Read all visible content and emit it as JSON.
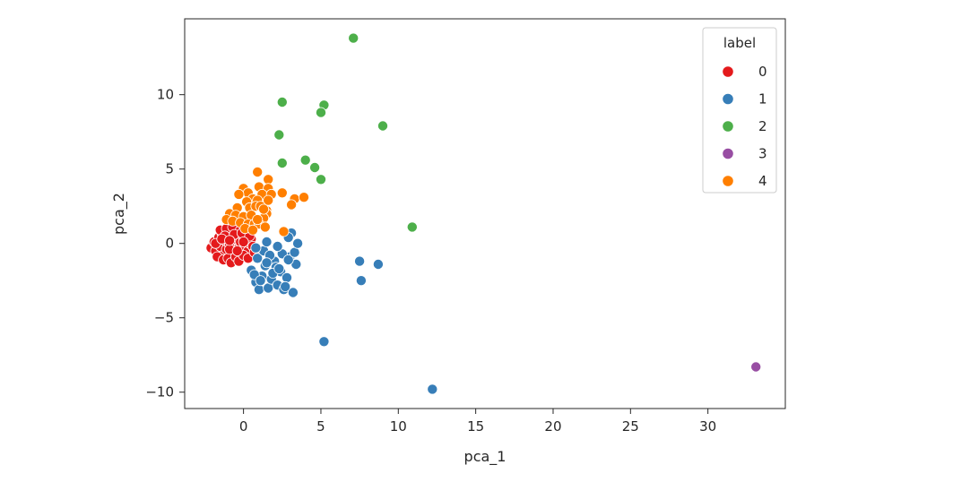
{
  "colors": {
    "0": "#e41a1c",
    "1": "#377eb8",
    "2": "#4daf4a",
    "3": "#984ea3",
    "4": "#ff7f00",
    "frame": "#262626",
    "point_edge": "#ffffff"
  },
  "chart_data": {
    "type": "scatter",
    "title": "",
    "xlabel": "pca_1",
    "ylabel": "pca_2",
    "xlim": [
      -3.8,
      35.0
    ],
    "ylim": [
      -11.1,
      15.1
    ],
    "xticks": [
      {
        "value": 0,
        "label": "0"
      },
      {
        "value": 5,
        "label": "5"
      },
      {
        "value": 10,
        "label": "10"
      },
      {
        "value": 15,
        "label": "15"
      },
      {
        "value": 20,
        "label": "20"
      },
      {
        "value": 25,
        "label": "25"
      },
      {
        "value": 30,
        "label": "30"
      }
    ],
    "yticks": [
      {
        "value": -10,
        "label": "−10"
      },
      {
        "value": -5,
        "label": "−5"
      },
      {
        "value": 0,
        "label": "0"
      },
      {
        "value": 5,
        "label": "5"
      },
      {
        "value": 10,
        "label": "10"
      }
    ],
    "grid": false,
    "legend": {
      "title": "label",
      "placement": "top-right",
      "entries": [
        "0",
        "1",
        "2",
        "3",
        "4"
      ]
    },
    "series": [
      {
        "name": "0",
        "x": [
          -2.1,
          -1.9,
          -1.8,
          -1.6,
          -1.5,
          -1.4,
          -1.3,
          -1.2,
          -1.1,
          -1.0,
          -0.9,
          -0.8,
          -0.7,
          -0.6,
          -0.5,
          -0.4,
          -0.3,
          -0.2,
          -0.1,
          0.0,
          0.1,
          0.2,
          0.3,
          0.4,
          0.5,
          -1.7,
          -1.3,
          -1.0,
          -0.8,
          -0.5,
          -0.3,
          0.0,
          0.3,
          -1.5,
          -1.1,
          -0.7,
          -0.2,
          0.2,
          -0.9,
          -0.4,
          0.6,
          -1.2,
          -0.6,
          -0.1,
          0.4,
          -1.8,
          -1.4,
          -0.9,
          0.0,
          0.7
        ],
        "y": [
          -0.3,
          0.1,
          -0.5,
          0.4,
          -0.2,
          0.7,
          -0.8,
          0.2,
          -0.4,
          0.9,
          -0.1,
          0.5,
          -0.9,
          0.3,
          -0.6,
          0.8,
          -0.3,
          0.1,
          -0.7,
          0.4,
          -0.2,
          0.6,
          -0.5,
          0.0,
          0.3,
          -0.9,
          -1.1,
          -1.0,
          -1.3,
          -0.9,
          -1.2,
          -0.8,
          -1.0,
          0.9,
          1.0,
          1.1,
          0.9,
          1.0,
          -0.4,
          -0.5,
          -0.2,
          0.5,
          0.6,
          0.7,
          0.5,
          0.0,
          0.3,
          0.2,
          0.1,
          -0.6
        ]
      },
      {
        "name": "1",
        "x": [
          0.5,
          0.8,
          1.0,
          1.2,
          1.4,
          1.6,
          1.8,
          2.0,
          2.2,
          2.4,
          2.6,
          2.8,
          3.0,
          3.2,
          3.4,
          0.9,
          1.3,
          1.7,
          2.1,
          2.5,
          2.9,
          3.3,
          0.7,
          1.1,
          1.5,
          1.9,
          2.3,
          2.7,
          3.1,
          0.8,
          1.5,
          2.2,
          2.9,
          3.5,
          7.5,
          7.6,
          8.7,
          5.2,
          12.2
        ],
        "y": [
          -1.8,
          -2.6,
          -3.1,
          -2.2,
          -1.5,
          -3.0,
          -2.4,
          -1.2,
          -2.8,
          -1.9,
          -3.1,
          -2.3,
          -0.9,
          -3.3,
          -1.4,
          -1.0,
          -0.5,
          -0.8,
          -1.6,
          -0.7,
          -1.1,
          -0.6,
          -2.1,
          -2.5,
          -1.3,
          -2.0,
          -1.7,
          -2.9,
          0.7,
          -0.3,
          0.1,
          -0.2,
          0.4,
          0.0,
          -1.2,
          -2.5,
          -1.4,
          -6.6,
          -9.8
        ]
      },
      {
        "name": "2",
        "x": [
          7.1,
          2.5,
          5.2,
          5.0,
          9.0,
          2.3,
          4.0,
          2.5,
          4.6,
          5.0,
          10.9
        ],
        "y": [
          13.8,
          9.5,
          9.3,
          8.8,
          7.9,
          7.3,
          5.6,
          5.4,
          5.1,
          4.3,
          1.1
        ]
      },
      {
        "name": "3",
        "x": [
          33.1
        ],
        "y": [
          -8.3
        ]
      },
      {
        "name": "4",
        "x": [
          0.9,
          1.6,
          0.0,
          1.0,
          1.6,
          0.3,
          1.2,
          1.8,
          0.6,
          -0.3,
          0.9,
          2.5,
          3.3,
          1.6,
          3.9,
          3.1,
          1.5,
          0.2,
          -0.4,
          0.4,
          0.8,
          1.1,
          1.5,
          -0.9,
          -0.5,
          0.0,
          0.5,
          1.3,
          -1.1,
          -0.7,
          -0.2,
          0.3,
          0.7,
          1.0,
          1.4,
          0.1,
          0.6,
          2.6,
          0.9,
          1.3
        ],
        "y": [
          4.8,
          4.3,
          3.7,
          3.8,
          3.7,
          3.4,
          3.3,
          3.3,
          3.0,
          3.3,
          2.9,
          3.4,
          3.0,
          2.9,
          3.1,
          2.6,
          2.2,
          2.8,
          2.4,
          2.4,
          2.5,
          2.5,
          2.0,
          2.0,
          1.9,
          1.8,
          1.9,
          1.7,
          1.6,
          1.5,
          1.4,
          1.3,
          1.3,
          1.3,
          1.1,
          1.0,
          0.9,
          0.8,
          1.6,
          2.3
        ]
      }
    ]
  }
}
